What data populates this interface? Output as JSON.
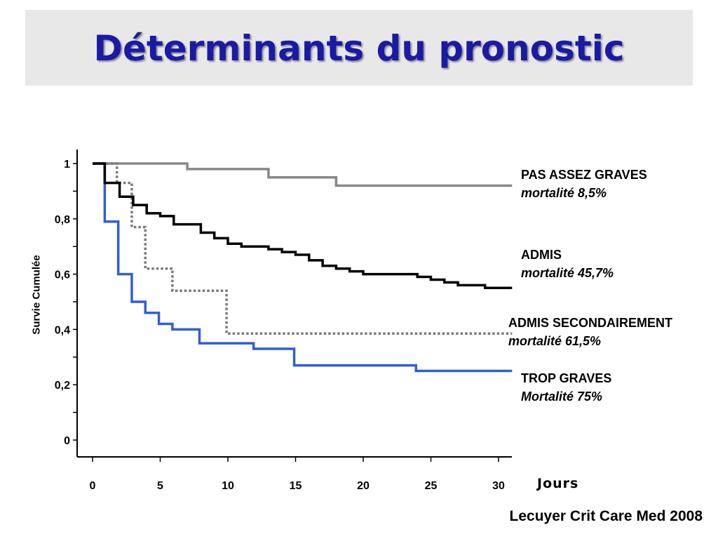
{
  "title": "Déterminants du pronostic",
  "citation": "Lecuyer Crit Care Med 2008",
  "chart_data": {
    "type": "line",
    "ylabel": "Survie Cumulée",
    "xlabel": "Jours",
    "xlim": [
      0,
      31
    ],
    "ylim": [
      0,
      1
    ],
    "x_ticks": [
      "0",
      "5",
      "10",
      "15",
      "20",
      "25",
      "30"
    ],
    "y_ticks": [
      "0",
      "0,2",
      "0,4",
      "0,6",
      "0,8",
      "1"
    ],
    "series": [
      {
        "name": "PAS ASSEZ GRAVES",
        "mortality_label": "mortalité 8,5%",
        "color": "#888888",
        "style": "solid",
        "x": [
          0,
          7,
          13,
          18,
          31
        ],
        "y": [
          1.0,
          0.98,
          0.95,
          0.92,
          0.92
        ]
      },
      {
        "name": "ADMIS",
        "mortality_label": "mortalité 45,7%",
        "color": "#000000",
        "style": "solid",
        "x": [
          0,
          0.9,
          2,
          3,
          4,
          5,
          6,
          8,
          9,
          10,
          11,
          13,
          14,
          15,
          16,
          17,
          18,
          19,
          20,
          22,
          24,
          25,
          26,
          27,
          29,
          31
        ],
        "y": [
          1.0,
          0.93,
          0.88,
          0.85,
          0.82,
          0.81,
          0.78,
          0.75,
          0.73,
          0.71,
          0.7,
          0.69,
          0.68,
          0.67,
          0.65,
          0.63,
          0.62,
          0.61,
          0.6,
          0.6,
          0.59,
          0.58,
          0.57,
          0.56,
          0.55,
          0.55
        ]
      },
      {
        "name": "ADMIS SECONDAIREMENT",
        "mortality_label": "mortalité 61,5%",
        "color": "#7a7a7a",
        "style": "dotted",
        "x": [
          0,
          1.8,
          2.9,
          3.9,
          5.9,
          9.9,
          31
        ],
        "y": [
          1.0,
          0.93,
          0.77,
          0.62,
          0.54,
          0.385,
          0.385
        ]
      },
      {
        "name": "TROP GRAVES",
        "mortality_label": "Mortalité 75%",
        "color": "#2f5fd6",
        "style": "solid",
        "x": [
          0,
          0.9,
          1.9,
          2.9,
          3.9,
          4.9,
          5.9,
          7.9,
          11.9,
          14.9,
          23.9,
          31
        ],
        "y": [
          1.0,
          0.79,
          0.6,
          0.5,
          0.46,
          0.42,
          0.4,
          0.35,
          0.33,
          0.27,
          0.25,
          0.25
        ]
      }
    ]
  }
}
